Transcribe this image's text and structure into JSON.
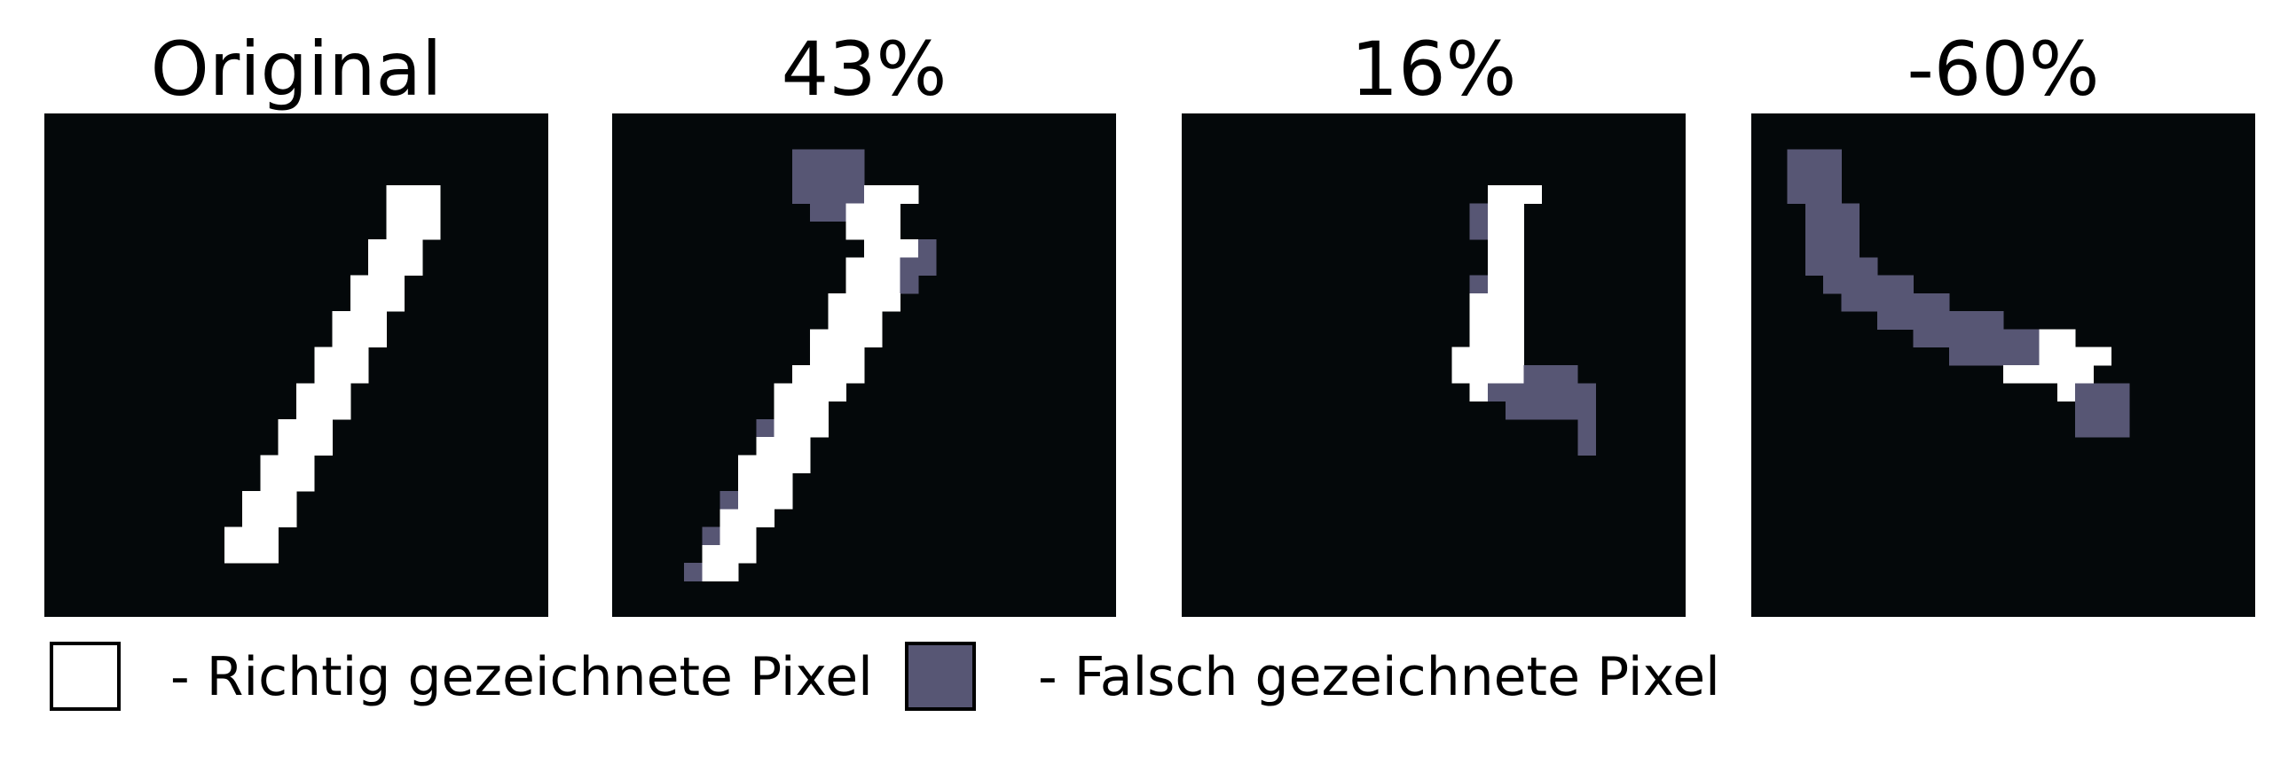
{
  "panels": [
    {
      "id": "original",
      "title": "Original",
      "pixels": [
        "............................",
        "............................",
        "............................",
        "............................",
        "...................WWW......",
        "...................WWW......",
        "...................WWW......",
        "..................WWW.......",
        "..................WWW.......",
        ".................WWW........",
        ".................WWW........",
        "................WWW.........",
        "................WWW.........",
        "...............WWW..........",
        "...............WWW..........",
        "..............WWW...........",
        "..............WWW...........",
        ".............WWW............",
        ".............WWW............",
        "............WWW.............",
        "............WWW.............",
        "...........WWW..............",
        "...........WWW..............",
        "..........WWW...............",
        "..........WWW...............",
        "............................",
        "............................",
        "............................"
      ]
    },
    {
      "id": "43",
      "title": "43%",
      "pixels": [
        "............................",
        "............................",
        "..........FFFF..............",
        "..........FFFF..............",
        "..........FFFFWWW...........",
        "...........FFWWW............",
        ".............WWW............",
        "..............WWWF..........",
        ".............WWWFF..........",
        ".............WWWF...........",
        "............WWWW............",
        "............WWW.............",
        "...........WWWW.............",
        "...........WWW..............",
        "..........WWWW..............",
        ".........WWWW...............",
        ".........WWW................",
        "........FWWW................",
        "........WWW.................",
        ".......WWWW.................",
        ".......WWW..................",
        "......FWWW..................",
        "......WWW...................",
        ".....FWW....................",
        ".....WWW....................",
        "....FWW.....................",
        "............................",
        "............................"
      ]
    },
    {
      "id": "16",
      "title": "16%",
      "pixels": [
        "............................",
        "............................",
        "............................",
        "............................",
        ".................WWW........",
        "................FWW.........",
        "................FWW.........",
        ".................WW.........",
        ".................WW.........",
        "................FWW.........",
        "................WWW.........",
        "................WWW.........",
        "................WWW.........",
        "...............WWWW.........",
        "...............WWWWFFF......",
        "................WFFFFFF.....",
        "..................FFFFF.....",
        "......................F.....",
        "......................F.....",
        "............................",
        "............................",
        "............................",
        "............................",
        "............................",
        "............................",
        "............................",
        "............................",
        "............................"
      ]
    },
    {
      "id": "minus60",
      "title": "-60%",
      "pixels": [
        "............................",
        "............................",
        "..FFF.......................",
        "..FFF.......................",
        "..FFF.......................",
        "...FFF......................",
        "...FFF......................",
        "...FFF......................",
        "...FFFF.....................",
        "....FFFFF...................",
        ".....FFFFFF.................",
        ".......FFFFFFF..............",
        ".........FFFFFFFWW..........",
        "...........FFFFFWWWW........",
        "..............WWWWW.........",
        ".................WFFF.......",
        "..................FFF.......",
        "..................FFF.......",
        "............................",
        "............................",
        "............................",
        "............................",
        "............................",
        "............................",
        "............................",
        "............................",
        "............................",
        "............................"
      ]
    }
  ],
  "legend": {
    "correct_label": "- Richtig gezeichnete Pixel",
    "wrong_label": "- Falsch gezeichnete Pixel"
  },
  "colors": {
    "background": "#04080a",
    "correct": "#ffffff",
    "wrong": "#575674"
  }
}
